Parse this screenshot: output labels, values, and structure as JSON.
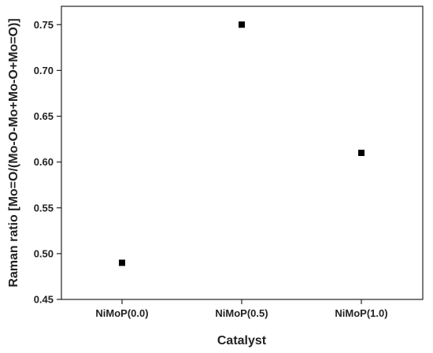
{
  "chart_data": {
    "type": "scatter",
    "title": "",
    "xlabel": "Catalyst",
    "ylabel": "Raman ratio [Mo=O/(Mo-O-Mo+Mo-O+Mo=O)]",
    "categories": [
      "NiMoP(0.0)",
      "NiMoP(0.5)",
      "NiMoP(1.0)"
    ],
    "series": [
      {
        "values": [
          0.49,
          0.75,
          0.61
        ],
        "marker": "square",
        "color": "#000000"
      }
    ],
    "ylim": [
      0.45,
      0.77
    ],
    "yticks": [
      0.45,
      0.5,
      0.55,
      0.6,
      0.65,
      0.7,
      0.75
    ],
    "ytick_labels": [
      "0.45",
      "0.50",
      "0.55",
      "0.60",
      "0.65",
      "0.70",
      "0.75"
    ],
    "grid": false,
    "legend": "none"
  }
}
